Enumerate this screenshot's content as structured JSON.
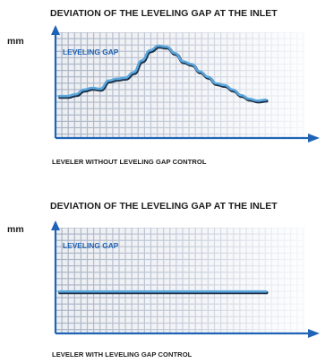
{
  "colors": {
    "axis": "#1f63b6",
    "grid_dark": "#a9b3c4",
    "grid_light": "#f5f7fa",
    "line_light": "#5aa7dd",
    "line_shadow": "#1d3048",
    "label": "#1f63b6"
  },
  "chart_data": [
    {
      "type": "line",
      "title": "DEVIATION OF THE LEVELING GAP AT THE INLET",
      "ylabel": "mm",
      "series_label": "LEVELING GAP",
      "caption": "LEVELER WITHOUT LEVELING GAP CONTROL",
      "xlim": [
        0,
        100
      ],
      "ylim": [
        0,
        100
      ],
      "series": [
        {
          "name": "LEVELING GAP",
          "x": [
            0,
            4,
            8,
            12,
            16,
            20,
            24,
            28,
            32,
            36,
            40,
            44,
            48,
            52,
            56,
            60,
            64,
            68,
            72,
            76,
            80,
            84,
            88,
            92,
            96,
            100
          ],
          "y": [
            38,
            38,
            40,
            45,
            47,
            46,
            55,
            57,
            58,
            64,
            77,
            88,
            93,
            92,
            85,
            76,
            73,
            65,
            59,
            52,
            50,
            45,
            39,
            35,
            33,
            34
          ]
        }
      ]
    },
    {
      "type": "line",
      "title": "DEVIATION OF THE LEVELING GAP AT THE INLET",
      "ylabel": "mm",
      "series_label": "LEVELING GAP",
      "caption": "LEVELER WITH LEVELING GAP CONTROL",
      "xlim": [
        0,
        100
      ],
      "ylim": [
        0,
        100
      ],
      "series": [
        {
          "name": "LEVELING GAP",
          "x": [
            0,
            100
          ],
          "y": [
            38,
            38
          ]
        }
      ]
    }
  ]
}
